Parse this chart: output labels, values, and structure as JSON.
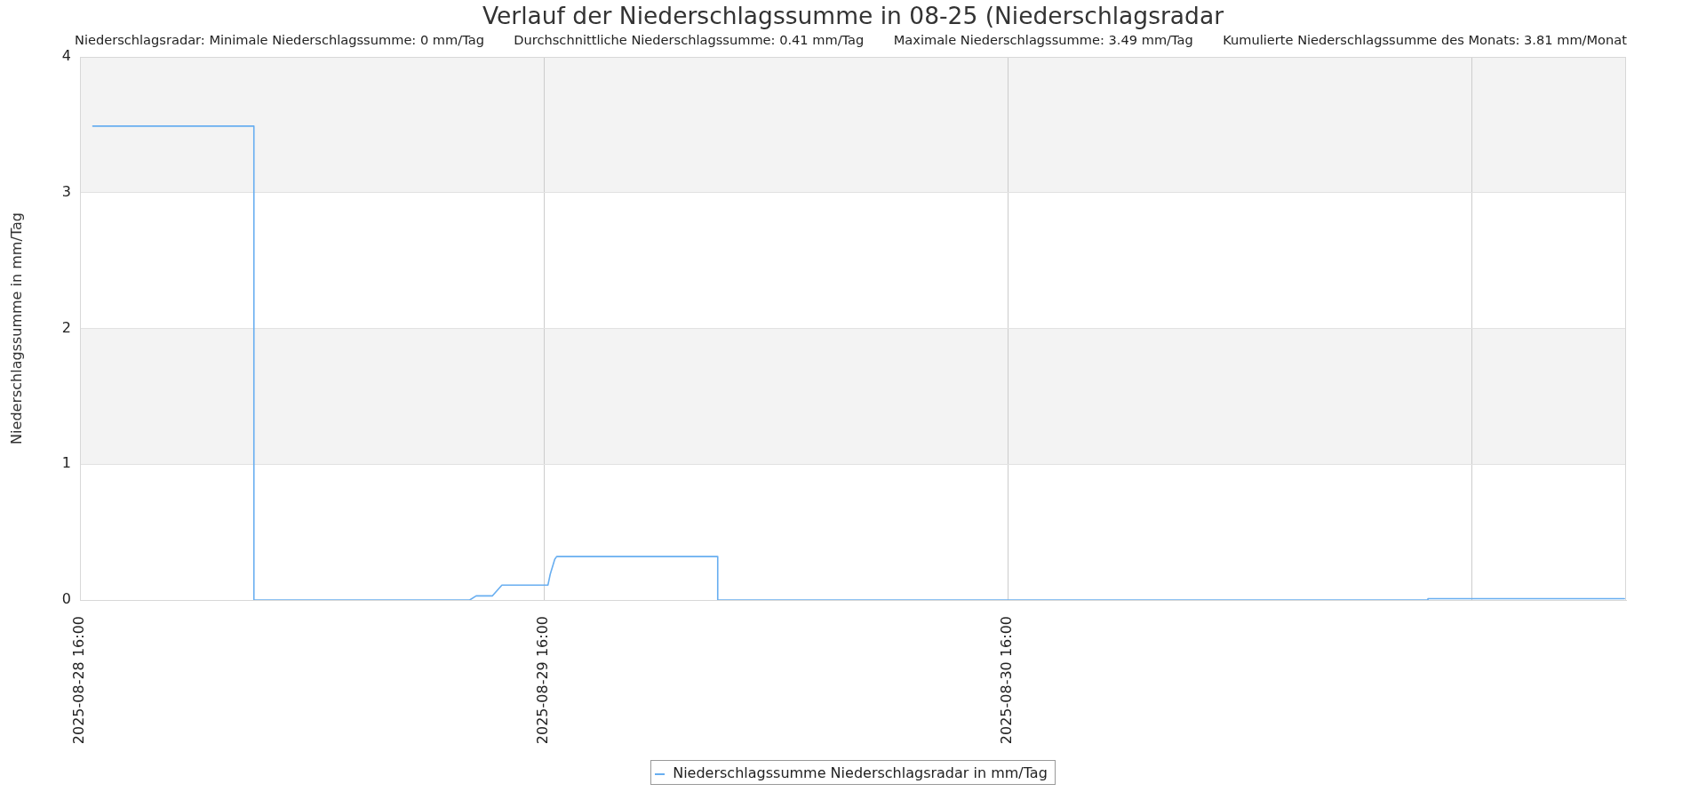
{
  "chart_data": {
    "type": "line",
    "title": "Verlauf der Niederschlagssumme in 08-25 (Niederschlagsradar",
    "annotations": [
      "Niederschlagsradar: Minimale Niederschlagssumme: 0 mm/Tag",
      "Durchschnittliche Niederschlagssumme: 0.41 mm/Tag",
      "Maximale Niederschlagssumme: 3.49 mm/Tag",
      "Kumulierte Niederschlagssumme des Monats: 3.81 mm/Monat"
    ],
    "ylabel": "Niederschlagssumme in mm/Tag",
    "x": [
      "2025-08-28T16:40",
      "2025-08-29T01:00",
      "2025-08-29T01:00",
      "2025-08-29T12:10",
      "2025-08-29T12:30",
      "2025-08-29T13:20",
      "2025-08-29T13:50",
      "2025-08-29T16:13",
      "2025-08-29T16:20",
      "2025-08-29T16:34",
      "2025-08-29T16:40",
      "2025-08-30T01:00",
      "2025-08-30T01:00",
      "2025-08-31T13:45",
      "2025-08-31T13:45",
      "2025-08-31T23:55"
    ],
    "series": [
      {
        "name": "Niederschlagssumme Niederschlagsradar in mm/Tag",
        "color": "#68aef0",
        "values": [
          3.49,
          3.49,
          0,
          0,
          0.03,
          0.03,
          0.11,
          0.11,
          0.19,
          0.3,
          0.32,
          0.32,
          0,
          0,
          0.01,
          0.01
        ]
      }
    ],
    "xlim": [
      "2025-08-28T16:00",
      "2025-09-01T00:00"
    ],
    "xticks": [
      {
        "value": "2025-08-28T16:00",
        "label": "2025-08-28 16:00"
      },
      {
        "value": "2025-08-29T16:00",
        "label": "2025-08-29 16:00"
      },
      {
        "value": "2025-08-30T16:00",
        "label": "2025-08-30 16:00"
      },
      {
        "value": "2025-08-31T16:00",
        "label": null
      }
    ],
    "ylim": [
      0,
      4
    ],
    "yticks": [
      0,
      1,
      2,
      3,
      4
    ],
    "grid": true,
    "legend": "bottom",
    "marker": "none",
    "line_style": "solid"
  }
}
